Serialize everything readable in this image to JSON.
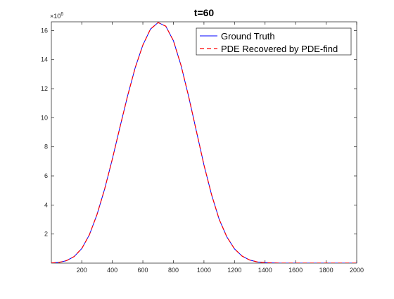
{
  "chart_data": {
    "type": "line",
    "title": "t=60",
    "xlabel": "",
    "ylabel": "",
    "y_exponent_label": "×10",
    "y_exponent_power": "6",
    "xlim": [
      1,
      2000
    ],
    "ylim": [
      0,
      16.6
    ],
    "xticks": [
      200,
      400,
      600,
      800,
      1000,
      1200,
      1400,
      1600,
      1800,
      2000
    ],
    "xtick_labels": [
      "200",
      "400",
      "600",
      "800",
      "1000",
      "1200",
      "1400",
      "1600",
      "1800",
      "2000"
    ],
    "yticks": [
      2,
      4,
      6,
      8,
      10,
      12,
      14,
      16
    ],
    "ytick_labels": [
      "2",
      "4",
      "6",
      "8",
      "10",
      "12",
      "14",
      "16"
    ],
    "grid": false,
    "legend_position": "top-right",
    "series": [
      {
        "name": "Ground Truth",
        "color": "#0000ff",
        "style": "solid",
        "x": [
          1,
          50,
          100,
          150,
          200,
          250,
          300,
          350,
          400,
          450,
          500,
          550,
          600,
          650,
          700,
          750,
          800,
          850,
          900,
          950,
          1000,
          1050,
          1100,
          1150,
          1200,
          1250,
          1300,
          1350,
          1400,
          1450,
          1500,
          1600,
          1800,
          2000
        ],
        "values": [
          0.01,
          0.05,
          0.17,
          0.45,
          1.0,
          1.95,
          3.35,
          5.1,
          7.15,
          9.35,
          11.5,
          13.45,
          15.0,
          16.1,
          16.55,
          16.3,
          15.3,
          13.6,
          11.45,
          9.1,
          6.75,
          4.7,
          3.0,
          1.8,
          0.98,
          0.48,
          0.21,
          0.08,
          0.03,
          0.01,
          0.0,
          0.0,
          0.0,
          0.0
        ]
      },
      {
        "name": "PDE Recovered by PDE-find",
        "color": "#ff0000",
        "style": "dashed",
        "x": [
          1,
          50,
          100,
          150,
          200,
          250,
          300,
          350,
          400,
          450,
          500,
          550,
          600,
          650,
          700,
          750,
          800,
          850,
          900,
          950,
          1000,
          1050,
          1100,
          1150,
          1200,
          1250,
          1300,
          1350,
          1400,
          1450,
          1500,
          1600,
          1800,
          2000
        ],
        "values": [
          0.01,
          0.05,
          0.17,
          0.45,
          1.0,
          1.95,
          3.35,
          5.1,
          7.15,
          9.35,
          11.5,
          13.45,
          15.0,
          16.1,
          16.55,
          16.3,
          15.3,
          13.6,
          11.45,
          9.1,
          6.75,
          4.7,
          3.0,
          1.8,
          0.98,
          0.48,
          0.21,
          0.08,
          0.03,
          0.01,
          0.0,
          0.0,
          0.0,
          0.0
        ]
      }
    ]
  }
}
